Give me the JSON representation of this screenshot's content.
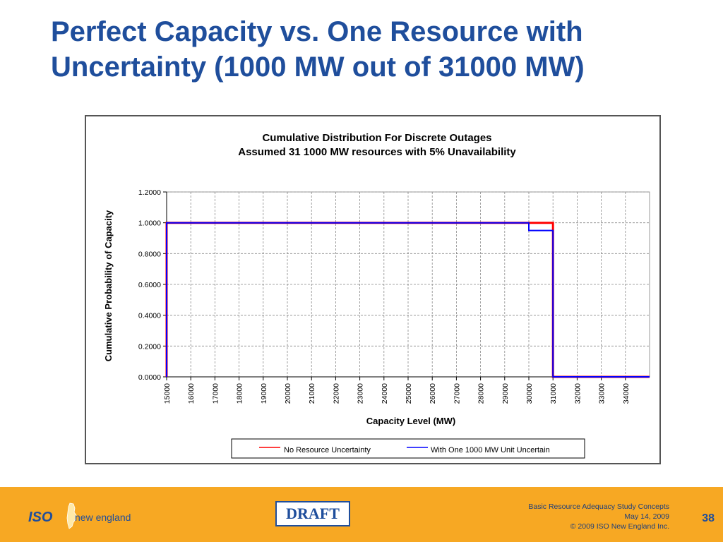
{
  "slide": {
    "title_line1": "Perfect Capacity vs. One Resource with",
    "title_line2": "Uncertainty (1000 MW out of 31000 MW)"
  },
  "chart_data": {
    "type": "line",
    "title": "Cumulative Distribution For Discrete Outages",
    "subtitle": "Assumed 31 1000 MW resources with 5% Unavailability",
    "xlabel": "Capacity Level (MW)",
    "ylabel": "Cumulative Probability of Capacity",
    "xlim": [
      15000,
      35000
    ],
    "ylim": [
      0,
      1.2
    ],
    "x_ticks": [
      "15000",
      "16000",
      "17000",
      "18000",
      "19000",
      "20000",
      "21000",
      "22000",
      "23000",
      "24000",
      "25000",
      "26000",
      "27000",
      "28000",
      "29000",
      "30000",
      "31000",
      "32000",
      "33000",
      "34000"
    ],
    "y_ticks": [
      "0.0000",
      "0.2000",
      "0.4000",
      "0.6000",
      "0.8000",
      "1.0000",
      "1.2000"
    ],
    "grid": true,
    "legend_position": "bottom",
    "series": [
      {
        "name": "No Resource Uncertainty",
        "color": "#ff0000",
        "x": [
          15000,
          15000,
          31000,
          31000,
          35000
        ],
        "y": [
          0.0,
          1.0,
          1.0,
          0.0,
          0.0
        ]
      },
      {
        "name": "With One 1000 MW Unit Uncertain",
        "color": "#0000ff",
        "x": [
          15000,
          15000,
          30000,
          30000,
          31000,
          31000,
          35000
        ],
        "y": [
          0.0,
          1.0,
          1.0,
          0.95,
          0.95,
          0.0,
          0.0
        ]
      }
    ]
  },
  "footer": {
    "logo_text": "ISO",
    "logo_subtext": "new england",
    "draft_label": "DRAFT",
    "info_line1": "Basic Resource Adequacy Study Concepts",
    "info_line2": "May 14, 2009",
    "info_line3": "© 2009 ISO New England Inc.",
    "page_number": "38",
    "background_color": "#f7a823"
  }
}
